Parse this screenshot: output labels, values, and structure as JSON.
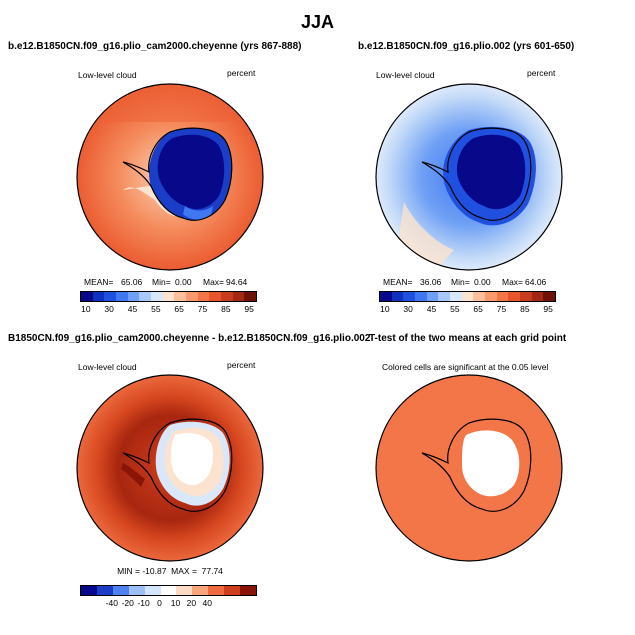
{
  "figure_title": "JJA",
  "panels": {
    "p1": {
      "title": "b.e12.B1850CN.f09_g16.plio_cam2000.cheyenne (yrs 867-888)",
      "left_label": "Low-level cloud",
      "right_label": "percent",
      "mean_label": "MEAN=",
      "mean_value": "65.06",
      "min_label": "Min=",
      "min_value": "0.00",
      "max_label": "Max=",
      "max_value": "94.64"
    },
    "p2": {
      "title": "b.e12.B1850CN.f09_g16.plio.002 (yrs 601-650)",
      "left_label": "Low-level cloud",
      "right_label": "percent",
      "mean_label": "MEAN=",
      "mean_value": "36.06",
      "min_label": "Min=",
      "min_value": "0.00",
      "max_label": "Max=",
      "max_value": "64.06"
    },
    "p3": {
      "title": "B1850CN.f09_g16.plio_cam2000.cheyenne - b.e12.B1850CN.f09_g16.plio.002",
      "left_label": "Low-level cloud",
      "right_label": "percent",
      "minmax_text": "MIN = -10.87  MAX =  77.74"
    },
    "p4": {
      "title": "T-test of the two means at each grid point",
      "subtitle": "Colored cells are significant at the 0.05 level"
    }
  },
  "abs_colorbar": {
    "colors": [
      "#08088a",
      "#1030c0",
      "#2050e0",
      "#3f78f0",
      "#6fa0f5",
      "#a7c8f8",
      "#d9e7fb",
      "#fbe3d0",
      "#fbbf9a",
      "#f89a6c",
      "#f27648",
      "#e6552c",
      "#c83c1e",
      "#a02814",
      "#6e1208"
    ],
    "ticks": [
      "10",
      "30",
      "45",
      "55",
      "65",
      "75",
      "85",
      "95"
    ]
  },
  "diff_colorbar": {
    "colors": [
      "#08088a",
      "#1a3ec8",
      "#4f82ee",
      "#9dbff7",
      "#d4e4fa",
      "#ffffff",
      "#fbd9c4",
      "#f7a57a",
      "#ee6b3f",
      "#cf3f1e",
      "#8a1408"
    ],
    "ticks": [
      "-40",
      "-20",
      "-10",
      "0",
      "10",
      "20",
      "40"
    ]
  }
}
